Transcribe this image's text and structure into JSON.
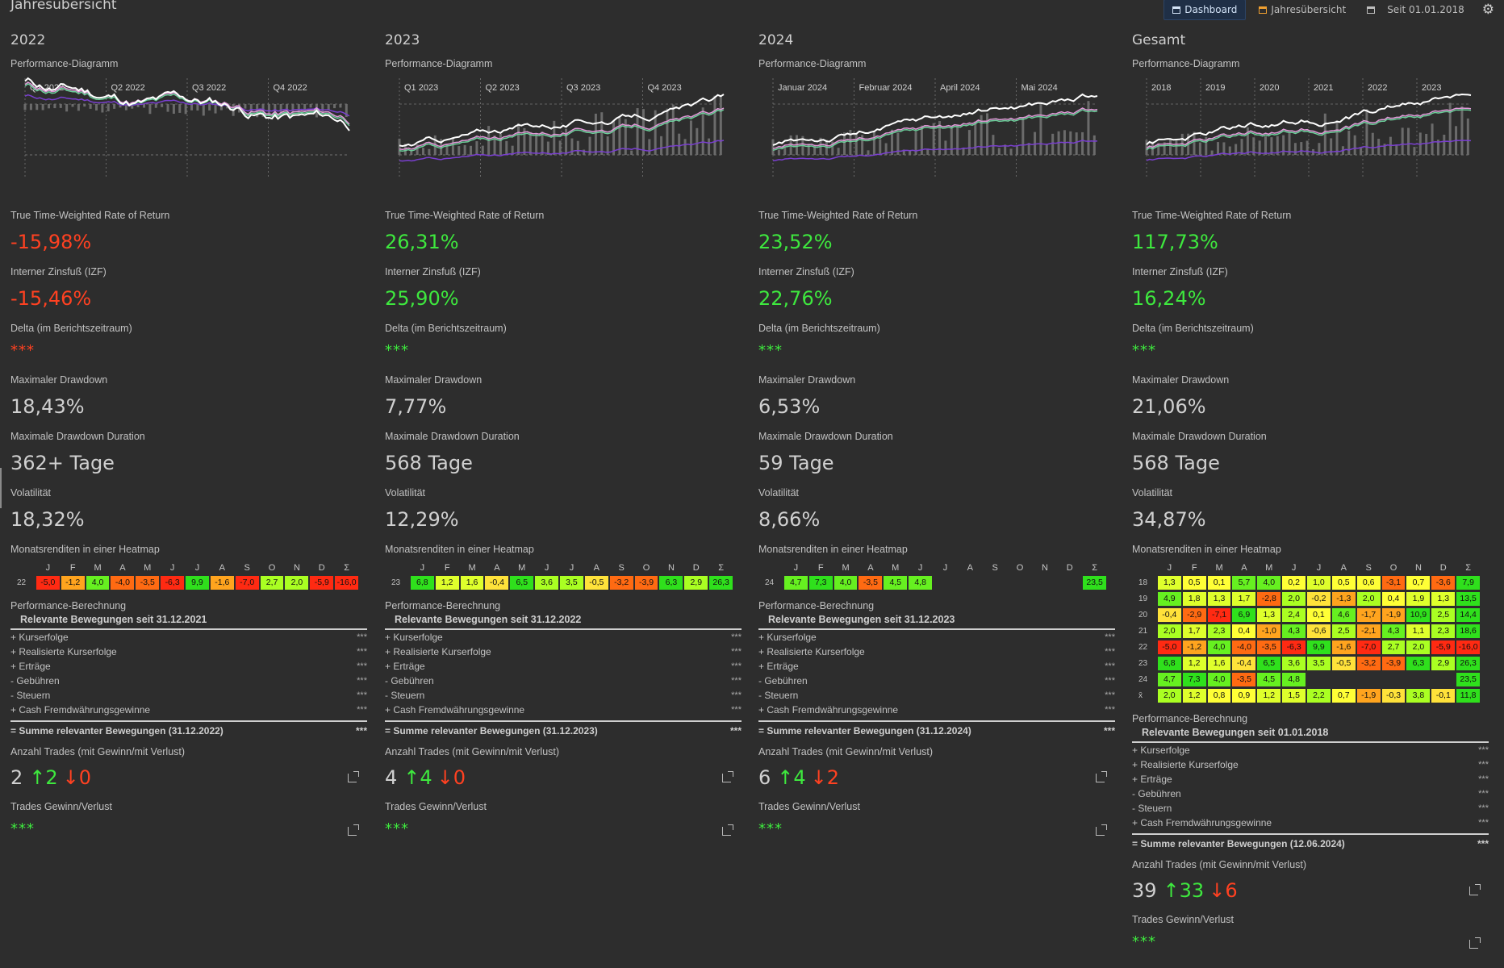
{
  "app_title": "Jahresübersicht",
  "toolbar": {
    "dashboard": "Dashboard",
    "jahres": "Jahresübersicht",
    "since": "Seit 01.01.2018"
  },
  "labels": {
    "perf_diagram": "Performance-Diagramm",
    "ttwror": "True Time-Weighted Rate of Return",
    "izf": "Interner Zinsfuß (IZF)",
    "delta": "Delta (im Berichtszeitraum)",
    "max_dd": "Maximaler Drawdown",
    "max_dd_dur": "Maximale Drawdown Duration",
    "vol": "Volatilität",
    "heatmap": "Monatsrenditen in einer Heatmap",
    "perf_calc": "Performance-Berechnung",
    "trades_count": "Anzahl Trades (mit Gewinn/mit Verlust)",
    "trades_pl": "Trades Gewinn/Verlust",
    "stars": "***",
    "kursgewinne": "+ Kurserfolge",
    "real": "+ Realisierte Kurserfolge",
    "ertraege": "+ Erträge",
    "gebuehren": "-  Gebühren",
    "steuern": "-  Steuern",
    "cash": "+ Cash Fremdwährungsgewinne"
  },
  "months": [
    "J",
    "F",
    "M",
    "A",
    "M",
    "J",
    "J",
    "A",
    "S",
    "O",
    "N",
    "D",
    "Σ"
  ],
  "columns": [
    {
      "year": "2022",
      "quarters": [
        "Q1 2022",
        "Q2 2022",
        "Q3 2022",
        "Q4 2022"
      ],
      "ttwror": "-15,98%",
      "ttwror_sign": "neg",
      "izf": "-15,46%",
      "izf_sign": "neg",
      "delta_sign": "neg",
      "max_dd": "18,43%",
      "max_dd_dur": "362+ Tage",
      "vol": "18,32%",
      "heatmap_rows": [
        {
          "label": "22",
          "values": [
            "-5,0",
            "-1,2",
            "4,0",
            "-4,0",
            "-3,5",
            "-6,3",
            "9,9",
            "-1,6",
            "-7,0",
            "2,7",
            "2,0",
            "-5,9",
            "-16,0"
          ]
        }
      ],
      "perf_sub": "Relevante Bewegungen seit 31.12.2021",
      "perf_sum": "= Summe relevanter Bewegungen (31.12.2022)",
      "trades_total": "2",
      "trades_up": "↑2",
      "trades_dn": "↓0"
    },
    {
      "year": "2023",
      "quarters": [
        "Q1 2023",
        "Q2 2023",
        "Q3 2023",
        "Q4 2023"
      ],
      "ttwror": "26,31%",
      "ttwror_sign": "pos",
      "izf": "25,90%",
      "izf_sign": "pos",
      "delta_sign": "pos",
      "max_dd": "7,77%",
      "max_dd_dur": "568 Tage",
      "vol": "12,29%",
      "heatmap_rows": [
        {
          "label": "23",
          "values": [
            "6,8",
            "1,2",
            "1,6",
            "-0,4",
            "6,5",
            "3,6",
            "3,5",
            "-0,5",
            "-3,2",
            "-3,9",
            "6,3",
            "2,9",
            "26,3"
          ]
        }
      ],
      "perf_sub": "Relevante Bewegungen seit 31.12.2022",
      "perf_sum": "= Summe relevanter Bewegungen (31.12.2023)",
      "trades_total": "4",
      "trades_up": "↑4",
      "trades_dn": "↓0"
    },
    {
      "year": "2024",
      "quarters": [
        "Januar 2024",
        "Februar 2024",
        "April 2024",
        "Mai 2024"
      ],
      "ttwror": "23,52%",
      "ttwror_sign": "pos",
      "izf": "22,76%",
      "izf_sign": "pos",
      "delta_sign": "pos",
      "max_dd": "6,53%",
      "max_dd_dur": "59 Tage",
      "vol": "8,66%",
      "heatmap_rows": [
        {
          "label": "24",
          "values": [
            "4,7",
            "7,3",
            "4,0",
            "-3,5",
            "4,5",
            "4,8",
            "",
            "",
            "",
            "",
            "",
            "",
            "23,5"
          ]
        }
      ],
      "perf_sub": "Relevante Bewegungen seit 31.12.2023",
      "perf_sum": "= Summe relevanter Bewegungen (31.12.2024)",
      "trades_total": "6",
      "trades_up": "↑4",
      "trades_dn": "↓2"
    },
    {
      "year": "Gesamt",
      "quarters": [
        "2018",
        "2019",
        "2020",
        "2021",
        "2022",
        "2023"
      ],
      "ttwror": "117,73%",
      "ttwror_sign": "pos",
      "izf": "16,24%",
      "izf_sign": "pos",
      "delta_sign": "pos",
      "max_dd": "21,06%",
      "max_dd_dur": "568 Tage",
      "vol": "34,87%",
      "heatmap_rows": [
        {
          "label": "18",
          "values": [
            "1,3",
            "0,5",
            "0,1",
            "5,7",
            "4,0",
            "0,2",
            "1,0",
            "0,5",
            "0,6",
            "-3,1",
            "0,7",
            "-3,6",
            "7,9"
          ]
        },
        {
          "label": "19",
          "values": [
            "4,9",
            "1,8",
            "1,3",
            "1,7",
            "-2,8",
            "2,0",
            "-0,2",
            "-1,3",
            "2,0",
            "0,4",
            "1,9",
            "1,3",
            "13,5"
          ]
        },
        {
          "label": "20",
          "values": [
            "-0,4",
            "-2,9",
            "-7,1",
            "6,9",
            "1,3",
            "2,4",
            "0,1",
            "4,6",
            "-1,7",
            "-1,9",
            "10,9",
            "2,5",
            "14,4"
          ]
        },
        {
          "label": "21",
          "values": [
            "2,0",
            "1,7",
            "2,3",
            "0,4",
            "-1,0",
            "4,3",
            "-0,6",
            "2,5",
            "-2,1",
            "4,3",
            "1,1",
            "2,3",
            "18,6"
          ]
        },
        {
          "label": "22",
          "values": [
            "-5,0",
            "-1,2",
            "4,0",
            "-4,0",
            "-3,5",
            "-6,3",
            "9,9",
            "-1,6",
            "-7,0",
            "2,7",
            "2,0",
            "-5,9",
            "-16,0"
          ]
        },
        {
          "label": "23",
          "values": [
            "6,8",
            "1,2",
            "1,6",
            "-0,4",
            "6,5",
            "3,6",
            "3,5",
            "-0,5",
            "-3,2",
            "-3,9",
            "6,3",
            "2,9",
            "26,3"
          ]
        },
        {
          "label": "24",
          "values": [
            "4,7",
            "7,3",
            "4,0",
            "-3,5",
            "4,5",
            "4,8",
            "",
            "",
            "",
            "",
            "",
            "",
            "23,5"
          ]
        },
        {
          "label": "x̄",
          "values": [
            "2,0",
            "1,2",
            "0,8",
            "0,9",
            "1,2",
            "1,5",
            "2,2",
            "0,7",
            "-1,9",
            "-0,3",
            "3,8",
            "-0,1",
            "11,8"
          ]
        }
      ],
      "perf_sub": "Relevante Bewegungen seit 01.01.2018",
      "perf_sum": "= Summe relevanter Bewegungen (12.06.2024)",
      "trades_total": "39",
      "trades_up": "↑33",
      "trades_dn": "↓6"
    }
  ]
}
